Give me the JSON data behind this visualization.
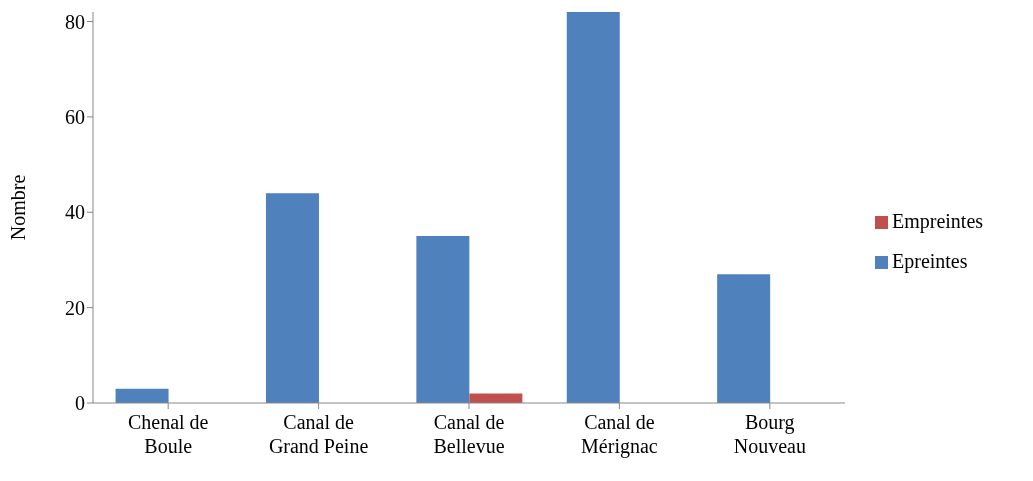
{
  "chart_data": {
    "type": "bar",
    "ylabel": "Nombre",
    "categories": [
      "Chenal de Boule",
      "Canal de Grand Peine",
      "Canal de Bellevue",
      "Canal de Mérignac",
      "Bourg Nouveau"
    ],
    "series": [
      {
        "name": "Epreintes",
        "color": "#4f81bd",
        "values": [
          3,
          44,
          35,
          82,
          27
        ]
      },
      {
        "name": "Empreintes",
        "color": "#c0504d",
        "values": [
          0,
          0,
          2,
          0,
          0
        ]
      }
    ],
    "ylim": [
      0,
      82
    ],
    "yticks": [
      0,
      20,
      40,
      60,
      80
    ],
    "grid": false,
    "legend": "right"
  }
}
